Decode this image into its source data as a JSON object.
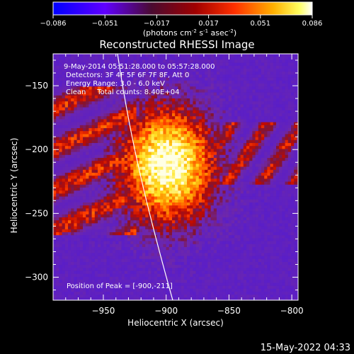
{
  "window": {
    "footer_timestamp": "15-May-2022 04:33"
  },
  "colorbar": {
    "tick_labels": [
      "-0.086",
      "-0.051",
      "-0.017",
      "0.017",
      "0.051",
      "0.086"
    ],
    "unit_label_parts": [
      "(photons cm",
      "-2",
      " s",
      "-1",
      " asec",
      "-2",
      ")"
    ]
  },
  "chart_data": {
    "type": "heatmap",
    "title": "Reconstructed RHESSI Image",
    "xlabel": "Heliocentric X (arcsec)",
    "ylabel": "Heliocentric Y (arcsec)",
    "xlim": [
      -990,
      -795
    ],
    "ylim": [
      -318,
      -125
    ],
    "x_ticks": [
      -950,
      -900,
      -850,
      -800
    ],
    "y_ticks": [
      -150,
      -200,
      -250,
      -300
    ],
    "tick_labels_x": [
      "−950",
      "−900",
      "−850",
      "−800"
    ],
    "tick_labels_y": [
      "−150",
      "−200",
      "−250",
      "−300"
    ],
    "color_range": [
      -0.086,
      0.086
    ],
    "colormap": [
      "#0000ff",
      "#8000ff",
      "#800000",
      "#ff0000",
      "#ff8000",
      "#ffff00",
      "#ffffff"
    ],
    "annotations": [
      "9-May-2014 05:51:28.000 to 05:57:28.000",
      "Detectors: 3F 4F 5F 6F 7F 8F, Att 0",
      "Energy Range: 3.0 - 6.0 keV",
      "Clean     Total counts: 8.40E+04"
    ],
    "peak_label": "Position of Peak = [-900,-211]",
    "peak": {
      "x": -900,
      "y": -211
    }
  }
}
